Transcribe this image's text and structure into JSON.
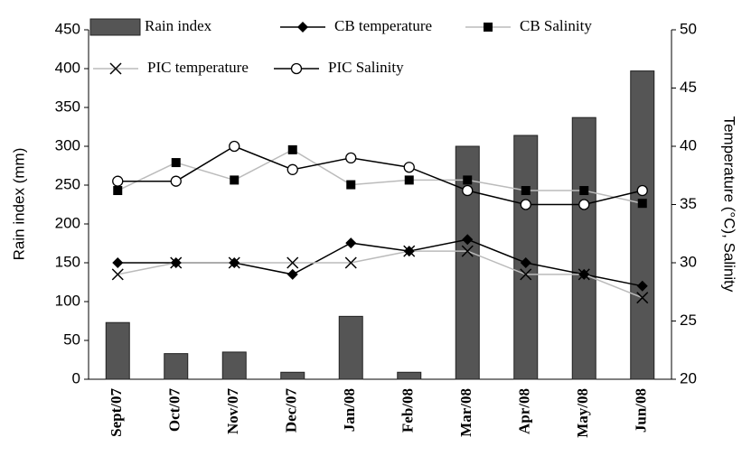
{
  "chart_data": {
    "type": "bar_line",
    "categories": [
      "Sept/07",
      "Oct/07",
      "Nov/07",
      "Dec/07",
      "Jan/08",
      "Feb/08",
      "Mar/08",
      "Apr/08",
      "May/08",
      "Jun/08"
    ],
    "ylabel": "Rain index (mm)",
    "y2label": "Temperature (°C), Salinity",
    "ylim": [
      0,
      450
    ],
    "yticks": [
      0,
      50,
      100,
      150,
      200,
      250,
      300,
      350,
      400,
      450
    ],
    "y2lim": [
      20,
      50
    ],
    "y2ticks": [
      20,
      25,
      30,
      35,
      40,
      45,
      50
    ],
    "series": [
      {
        "name": "Rain index",
        "type": "bar",
        "color": "#555555",
        "values": [
          73,
          33,
          35,
          9,
          81,
          9,
          300,
          314,
          337,
          397
        ]
      },
      {
        "name": "CB temperature",
        "type": "line",
        "axis": "y2",
        "color": "#000000",
        "marker": "diamond",
        "values": [
          30,
          30,
          30,
          29,
          31.7,
          31,
          32,
          30,
          29,
          28
        ]
      },
      {
        "name": "CB Salinity",
        "type": "line",
        "axis": "y2",
        "color": "#bbbbbb",
        "marker": "square",
        "values": [
          36.2,
          38.6,
          37.1,
          39.7,
          36.7,
          37.1,
          37.1,
          36.2,
          36.2,
          35.1
        ]
      },
      {
        "name": "PIC temperature",
        "type": "line",
        "axis": "y2",
        "color": "#bbbbbb",
        "marker": "x",
        "values": [
          29,
          30,
          30,
          30,
          30,
          31,
          31,
          29,
          29,
          27
        ]
      },
      {
        "name": "PIC Salinity",
        "type": "line",
        "axis": "y2",
        "color": "#000000",
        "marker": "circle",
        "values": [
          37,
          37,
          40,
          38,
          39,
          38.2,
          36.2,
          35,
          35,
          36.2
        ]
      }
    ]
  }
}
